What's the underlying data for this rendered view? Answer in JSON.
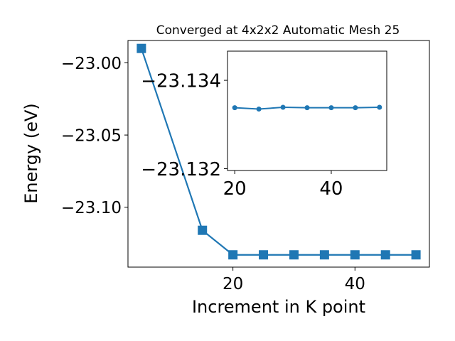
{
  "chart_data": [
    {
      "type": "line",
      "title": "Converged at 4x2x2 Automatic Mesh 25",
      "xlabel": "Increment in K point",
      "ylabel": "Energy (eV)",
      "x": [
        5,
        15,
        20,
        25,
        30,
        35,
        40,
        45,
        50
      ],
      "series": [
        {
          "values": [
            -22.99,
            -23.116,
            -23.133,
            -23.133,
            -23.133,
            -23.133,
            -23.133,
            -23.133,
            -23.133
          ]
        }
      ],
      "xlim": [
        2.8,
        52.2
      ],
      "ylim": [
        -23.1415,
        -22.9845
      ],
      "xticks": [
        20,
        40
      ],
      "xtick_labels": [
        "20",
        "40"
      ],
      "yticks": [
        -23.0,
        -23.05,
        -23.1
      ],
      "ytick_labels": [
        "−23.00",
        "−23.05",
        "−23.10"
      ],
      "marker": "square",
      "color": "#1f77b4",
      "grid": false
    },
    {
      "type": "line",
      "title": "",
      "xlabel": "",
      "ylabel": "",
      "x": [
        20,
        25,
        30,
        35,
        40,
        45,
        50
      ],
      "series": [
        {
          "values": [
            -23.13338,
            -23.13335,
            -23.13339,
            -23.13338,
            -23.13338,
            -23.13338,
            -23.13339
          ]
        }
      ],
      "xlim": [
        18.5,
        51.5
      ],
      "ylim": [
        -23.13196,
        -23.13466
      ],
      "inverted_y": true,
      "xticks": [
        20,
        40
      ],
      "xtick_labels": [
        "20",
        "40"
      ],
      "yticks": [
        -23.134,
        -23.132
      ],
      "ytick_labels": [
        "−23.134",
        "−23.132"
      ],
      "marker": "circle",
      "color": "#1f77b4",
      "grid": false,
      "placement": "inset upper-right"
    }
  ]
}
